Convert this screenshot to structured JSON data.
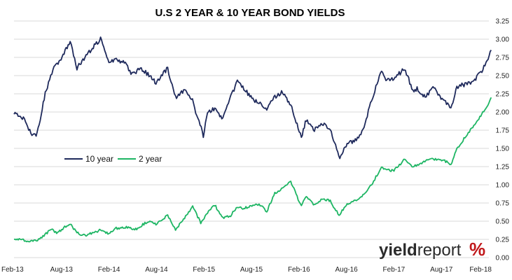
{
  "chart_data": {
    "type": "line",
    "title": "U.S 2 YEAR & 10 YEAR BOND YIELDS",
    "x_ticks": [
      "Feb-13",
      "Aug-13",
      "Feb-14",
      "Aug-14",
      "Feb-15",
      "Aug-15",
      "Feb-16",
      "Aug-16",
      "Feb-17",
      "Aug-17",
      "Feb-18"
    ],
    "y_ticks": [
      "0.00",
      "0.25",
      "0.50",
      "0.75",
      "1.00",
      "1.25",
      "1.50",
      "1.75",
      "2.00",
      "2.25",
      "2.50",
      "2.75",
      "3.00",
      "3.25"
    ],
    "ylim": [
      0,
      3.25
    ],
    "x_range": [
      "2013-02",
      "2018-02"
    ],
    "y_axis_side": "right",
    "grid": "horizontal",
    "legend_position": "center-left",
    "series": [
      {
        "name": "10 year",
        "color": "#1f2a5c",
        "x": [
          "2013-02-01",
          "2013-03-01",
          "2013-04-15",
          "2013-05-01",
          "2013-06-01",
          "2013-07-01",
          "2013-08-01",
          "2013-09-05",
          "2013-10-01",
          "2013-11-01",
          "2013-12-31",
          "2014-02-01",
          "2014-03-01",
          "2014-04-01",
          "2014-05-01",
          "2014-06-01",
          "2014-07-01",
          "2014-08-01",
          "2014-09-15",
          "2014-10-15",
          "2014-11-15",
          "2014-12-15",
          "2015-01-30",
          "2015-02-15",
          "2015-03-15",
          "2015-04-15",
          "2015-05-15",
          "2015-06-10",
          "2015-07-01",
          "2015-08-01",
          "2015-09-01",
          "2015-10-01",
          "2015-11-01",
          "2015-12-01",
          "2016-01-01",
          "2016-02-11",
          "2016-03-01",
          "2016-04-01",
          "2016-05-01",
          "2016-06-01",
          "2016-07-08",
          "2016-08-01",
          "2016-09-01",
          "2016-10-01",
          "2016-11-15",
          "2016-12-15",
          "2017-01-01",
          "2017-02-01",
          "2017-03-13",
          "2017-04-15",
          "2017-05-01",
          "2017-06-01",
          "2017-07-01",
          "2017-08-01",
          "2017-09-08",
          "2017-10-01",
          "2017-11-01",
          "2017-12-01",
          "2018-01-01",
          "2018-01-25",
          "2018-02-10"
        ],
        "values": [
          1.98,
          1.95,
          1.68,
          1.7,
          2.25,
          2.58,
          2.72,
          2.98,
          2.6,
          2.75,
          3.01,
          2.7,
          2.72,
          2.68,
          2.52,
          2.6,
          2.52,
          2.4,
          2.6,
          2.2,
          2.3,
          2.2,
          1.68,
          2.0,
          2.05,
          1.9,
          2.2,
          2.42,
          2.35,
          2.2,
          2.12,
          2.05,
          2.2,
          2.28,
          2.1,
          1.66,
          1.9,
          1.75,
          1.85,
          1.75,
          1.37,
          1.55,
          1.6,
          1.72,
          2.25,
          2.58,
          2.45,
          2.45,
          2.6,
          2.3,
          2.32,
          2.2,
          2.35,
          2.2,
          2.05,
          2.35,
          2.38,
          2.4,
          2.55,
          2.68,
          2.85
        ]
      },
      {
        "name": "2 year",
        "color": "#1db563",
        "x": [
          "2013-02-01",
          "2013-03-01",
          "2013-04-15",
          "2013-05-15",
          "2013-06-25",
          "2013-07-15",
          "2013-08-15",
          "2013-09-05",
          "2013-10-01",
          "2013-11-01",
          "2013-12-31",
          "2014-02-01",
          "2014-03-01",
          "2014-04-01",
          "2014-05-15",
          "2014-07-01",
          "2014-08-01",
          "2014-09-15",
          "2014-10-15",
          "2014-11-15",
          "2014-12-20",
          "2015-01-20",
          "2015-02-15",
          "2015-03-15",
          "2015-04-15",
          "2015-05-15",
          "2015-06-10",
          "2015-07-01",
          "2015-08-01",
          "2015-09-01",
          "2015-10-01",
          "2015-11-01",
          "2015-12-01",
          "2016-01-01",
          "2016-02-11",
          "2016-03-01",
          "2016-04-01",
          "2016-05-01",
          "2016-06-01",
          "2016-07-05",
          "2016-08-01",
          "2016-09-01",
          "2016-10-01",
          "2016-11-15",
          "2016-12-15",
          "2017-01-01",
          "2017-02-01",
          "2017-03-15",
          "2017-04-15",
          "2017-05-15",
          "2017-06-15",
          "2017-07-15",
          "2017-08-15",
          "2017-09-08",
          "2017-10-01",
          "2017-11-01",
          "2017-12-01",
          "2018-01-01",
          "2018-01-20",
          "2018-02-10"
        ],
        "values": [
          0.26,
          0.24,
          0.22,
          0.26,
          0.4,
          0.33,
          0.42,
          0.46,
          0.34,
          0.3,
          0.38,
          0.32,
          0.4,
          0.42,
          0.39,
          0.5,
          0.46,
          0.58,
          0.38,
          0.52,
          0.7,
          0.48,
          0.62,
          0.72,
          0.55,
          0.58,
          0.7,
          0.68,
          0.7,
          0.74,
          0.63,
          0.88,
          0.95,
          1.05,
          0.7,
          0.85,
          0.72,
          0.8,
          0.78,
          0.58,
          0.72,
          0.78,
          0.84,
          1.05,
          1.25,
          1.2,
          1.2,
          1.35,
          1.25,
          1.3,
          1.35,
          1.35,
          1.33,
          1.28,
          1.5,
          1.65,
          1.8,
          1.95,
          2.05,
          2.2
        ]
      }
    ]
  },
  "logo": {
    "part_a": "yield",
    "part_b": "report",
    "part_c": "%"
  }
}
